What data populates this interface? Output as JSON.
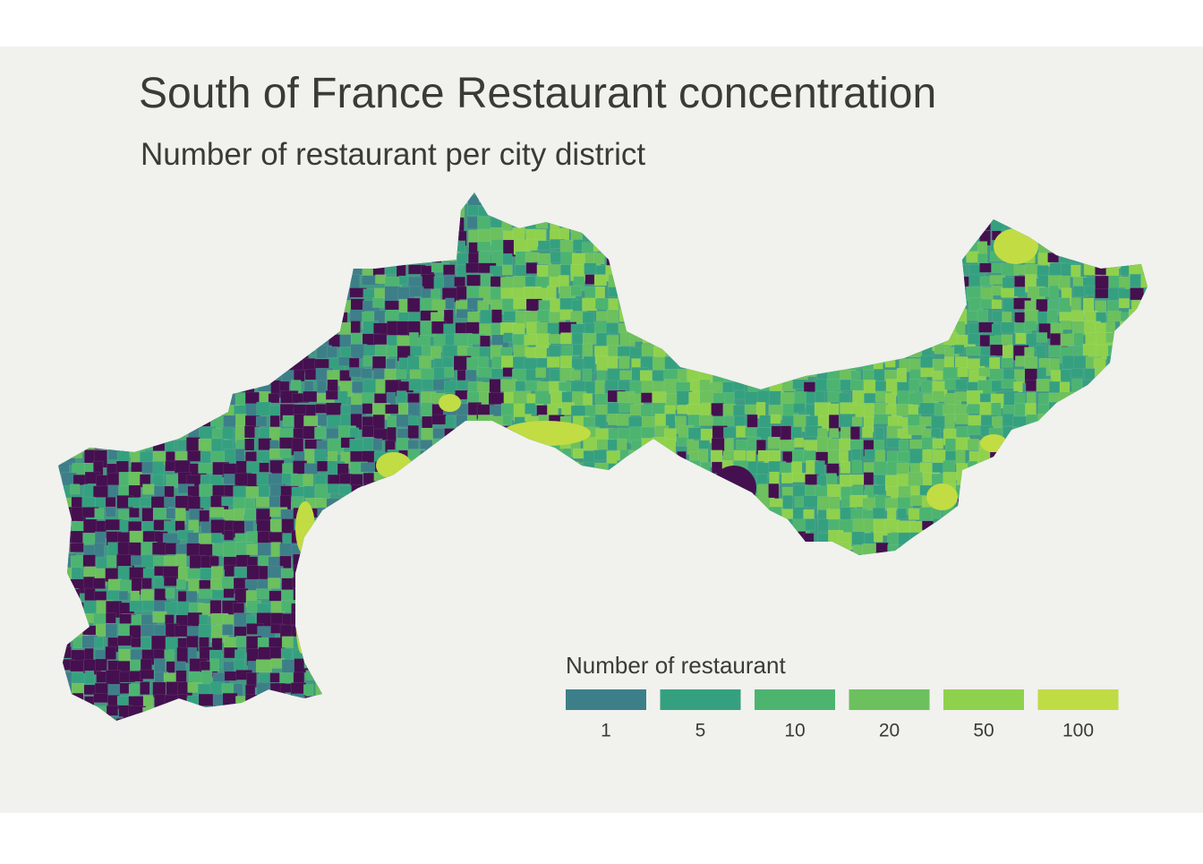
{
  "header": {
    "title": "South of France Restaurant concentration",
    "subtitle": "Number of restaurant per city district"
  },
  "legend": {
    "title": "Number of restaurant",
    "items": [
      {
        "value": 1,
        "color": "#3d7f88"
      },
      {
        "value": 5,
        "color": "#35a07f"
      },
      {
        "value": 10,
        "color": "#4db470"
      },
      {
        "value": 20,
        "color": "#6cc05d"
      },
      {
        "value": 50,
        "color": "#8fd14c"
      },
      {
        "value": 100,
        "color": "#bfdc44"
      }
    ]
  }
}
